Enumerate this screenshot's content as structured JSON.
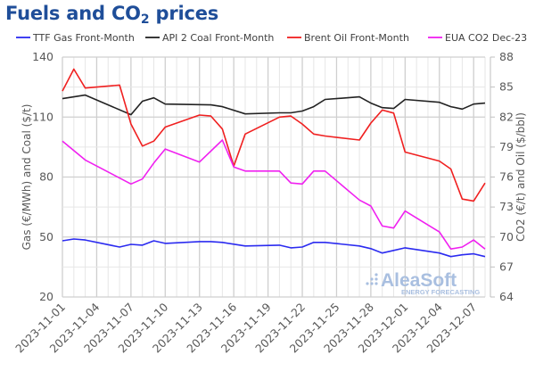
{
  "title": {
    "main": "Fuels and CO",
    "sub": "2",
    "rest": " prices"
  },
  "logo": {
    "name": "AleaSoft",
    "tagline": "ENERGY FORECASTING"
  },
  "chart_data": {
    "type": "line",
    "title": "Fuels and CO2 prices",
    "ylabel_left": "Gas (€/MWh) and Coal ($/t)",
    "ylabel_right": "CO2 (€/t) and Oil ($/bbl)",
    "ylim_left": [
      20,
      140
    ],
    "ylim_right": [
      64,
      88
    ],
    "yticks_left": [
      20,
      50,
      80,
      110,
      140
    ],
    "yticks_right": [
      64,
      67,
      70,
      73,
      76,
      79,
      82,
      85,
      88
    ],
    "xlim": [
      "2023-11-01",
      "2023-12-08"
    ],
    "xticks": [
      "2023-11-01",
      "2023-11-04",
      "2023-11-07",
      "2023-11-10",
      "2023-11-13",
      "2023-11-16",
      "2023-11-19",
      "2023-11-22",
      "2023-11-25",
      "2023-11-28",
      "2023-12-01",
      "2023-12-04",
      "2023-12-07"
    ],
    "grid": true,
    "legend_position": "top",
    "series": [
      {
        "name": "TTF Gas Front-Month",
        "axis": "left",
        "color": "#2b2bf0",
        "x": [
          "2023-11-01",
          "2023-11-02",
          "2023-11-03",
          "2023-11-06",
          "2023-11-07",
          "2023-11-08",
          "2023-11-09",
          "2023-11-10",
          "2023-11-13",
          "2023-11-14",
          "2023-11-15",
          "2023-11-16",
          "2023-11-17",
          "2023-11-20",
          "2023-11-21",
          "2023-11-22",
          "2023-11-23",
          "2023-11-24",
          "2023-11-27",
          "2023-11-28",
          "2023-11-29",
          "2023-11-30",
          "2023-12-01",
          "2023-12-04",
          "2023-12-05",
          "2023-12-06",
          "2023-12-07",
          "2023-12-08"
        ],
        "values": [
          48.1,
          49.0,
          48.5,
          45.0,
          46.3,
          45.9,
          48.1,
          46.8,
          47.7,
          47.7,
          47.3,
          46.4,
          45.5,
          45.9,
          44.6,
          45.0,
          47.3,
          47.3,
          45.5,
          44.2,
          42.0,
          43.3,
          44.6,
          42.0,
          40.2,
          41.1,
          41.6,
          40.2
        ]
      },
      {
        "name": "API 2 Coal Front-Month",
        "axis": "left",
        "color": "#222222",
        "x": [
          "2023-11-01",
          "2023-11-03",
          "2023-11-07",
          "2023-11-08",
          "2023-11-09",
          "2023-11-10",
          "2023-11-14",
          "2023-11-15",
          "2023-11-17",
          "2023-11-20",
          "2023-11-21",
          "2023-11-22",
          "2023-11-23",
          "2023-11-24",
          "2023-11-27",
          "2023-11-28",
          "2023-11-29",
          "2023-11-30",
          "2023-12-01",
          "2023-12-04",
          "2023-12-05",
          "2023-12-06",
          "2023-12-07",
          "2023-12-08"
        ],
        "values": [
          119.2,
          121.0,
          111.2,
          117.9,
          119.6,
          116.5,
          116.1,
          115.2,
          111.6,
          112.1,
          112.1,
          113.0,
          115.2,
          118.8,
          120.1,
          117.0,
          114.7,
          114.3,
          118.8,
          117.4,
          115.2,
          114.0,
          116.5,
          117.0
        ]
      },
      {
        "name": "Brent Oil Front-Month",
        "axis": "right",
        "color": "#f02020",
        "x": [
          "2023-11-01",
          "2023-11-02",
          "2023-11-03",
          "2023-11-06",
          "2023-11-07",
          "2023-11-08",
          "2023-11-09",
          "2023-11-10",
          "2023-11-13",
          "2023-11-14",
          "2023-11-15",
          "2023-11-16",
          "2023-11-17",
          "2023-11-20",
          "2023-11-21",
          "2023-11-22",
          "2023-11-23",
          "2023-11-24",
          "2023-11-27",
          "2023-11-28",
          "2023-11-29",
          "2023-11-30",
          "2023-12-01",
          "2023-12-04",
          "2023-12-05",
          "2023-12-06",
          "2023-12-07",
          "2023-12-08"
        ],
        "values": [
          84.6,
          86.8,
          84.9,
          85.2,
          81.3,
          79.1,
          79.6,
          81.0,
          82.2,
          82.1,
          80.8,
          77.1,
          80.3,
          82.0,
          82.1,
          81.3,
          80.3,
          80.1,
          79.7,
          81.4,
          82.7,
          82.4,
          78.5,
          77.6,
          76.8,
          73.8,
          73.6,
          75.4
        ]
      },
      {
        "name": "EUA CO2 Dec-23",
        "axis": "right",
        "color": "#f020f0",
        "x": [
          "2023-11-01",
          "2023-11-03",
          "2023-11-07",
          "2023-11-08",
          "2023-11-09",
          "2023-11-10",
          "2023-11-13",
          "2023-11-15",
          "2023-11-16",
          "2023-11-17",
          "2023-11-20",
          "2023-11-21",
          "2023-11-22",
          "2023-11-23",
          "2023-11-24",
          "2023-11-27",
          "2023-11-28",
          "2023-11-29",
          "2023-11-30",
          "2023-12-01",
          "2023-12-04",
          "2023-12-05",
          "2023-12-06",
          "2023-12-07",
          "2023-12-08"
        ],
        "values": [
          79.6,
          77.7,
          75.3,
          75.8,
          77.4,
          78.8,
          77.5,
          79.7,
          77.0,
          76.6,
          76.6,
          75.4,
          75.3,
          76.6,
          76.6,
          73.7,
          73.1,
          71.1,
          70.9,
          72.6,
          70.5,
          68.8,
          69.0,
          69.7,
          68.8
        ]
      }
    ]
  }
}
